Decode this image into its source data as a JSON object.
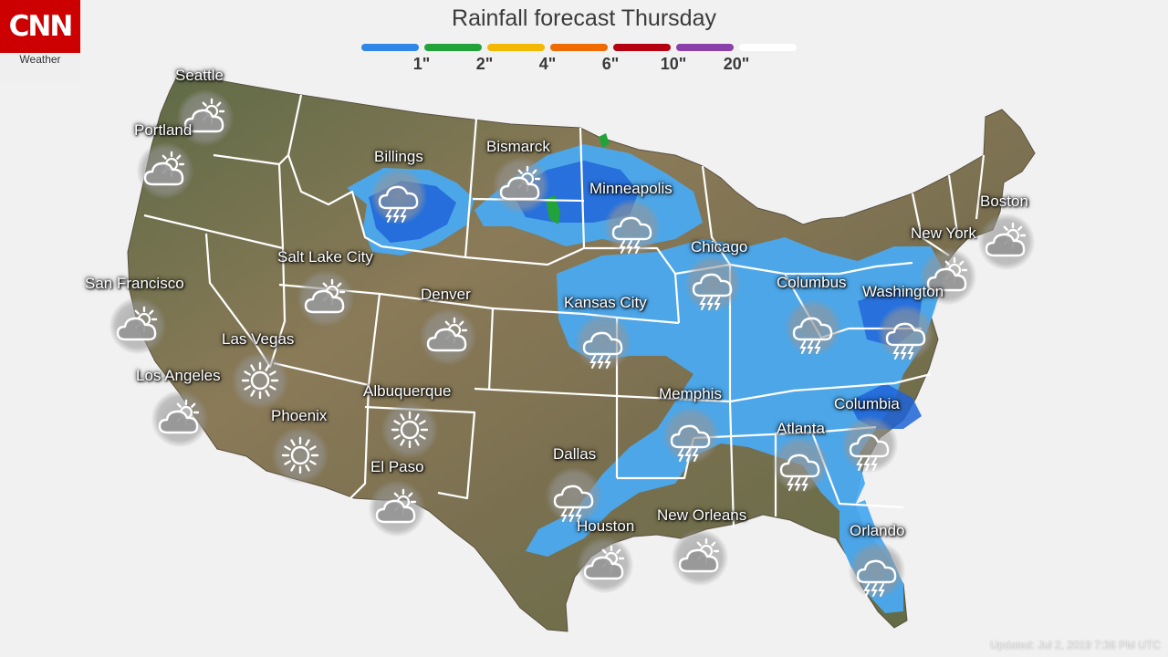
{
  "brand": {
    "logo_text": "CNN",
    "sub_label": "Weather",
    "color": "#cc0000"
  },
  "title": "Rainfall forecast Thursday",
  "legend": {
    "segments": [
      {
        "color": "#2f86e6",
        "tick": "1\""
      },
      {
        "color": "#22a33a",
        "tick": "2\""
      },
      {
        "color": "#f5b800",
        "tick": "4\""
      },
      {
        "color": "#ef6a00",
        "tick": "6\""
      },
      {
        "color": "#b40010",
        "tick": "10\""
      },
      {
        "color": "#8b3fa8",
        "tick": "20\""
      },
      {
        "color": "#ffffff",
        "tick": ""
      }
    ]
  },
  "cities": [
    {
      "name": "Seattle",
      "icon": "partly-cloudy-icon"
    },
    {
      "name": "Portland",
      "icon": "partly-cloudy-icon"
    },
    {
      "name": "Billings",
      "icon": "thunderstorm-icon"
    },
    {
      "name": "Bismarck",
      "icon": "partly-cloudy-icon"
    },
    {
      "name": "Minneapolis",
      "icon": "thunderstorm-icon"
    },
    {
      "name": "Boston",
      "icon": "partly-cloudy-icon"
    },
    {
      "name": "New York",
      "icon": "partly-cloudy-icon"
    },
    {
      "name": "Chicago",
      "icon": "thunderstorm-icon"
    },
    {
      "name": "Salt Lake City",
      "icon": "partly-cloudy-icon"
    },
    {
      "name": "San Francisco",
      "icon": "partly-cloudy-icon"
    },
    {
      "name": "Denver",
      "icon": "partly-cloudy-icon"
    },
    {
      "name": "Kansas City",
      "icon": "thunderstorm-icon"
    },
    {
      "name": "Columbus",
      "icon": "thunderstorm-icon"
    },
    {
      "name": "Washington",
      "icon": "thunderstorm-icon"
    },
    {
      "name": "Las Vegas",
      "icon": "sunny-icon"
    },
    {
      "name": "Los Angeles",
      "icon": "partly-cloudy-icon"
    },
    {
      "name": "Phoenix",
      "icon": "sunny-icon"
    },
    {
      "name": "Albuquerque",
      "icon": "sunny-icon"
    },
    {
      "name": "Memphis",
      "icon": "thunderstorm-icon"
    },
    {
      "name": "Columbia",
      "icon": "thunderstorm-icon"
    },
    {
      "name": "Atlanta",
      "icon": "thunderstorm-icon"
    },
    {
      "name": "El Paso",
      "icon": "partly-cloudy-icon"
    },
    {
      "name": "Dallas",
      "icon": "thunderstorm-icon"
    },
    {
      "name": "Houston",
      "icon": "partly-cloudy-icon"
    },
    {
      "name": "New Orleans",
      "icon": "partly-cloudy-icon"
    },
    {
      "name": "Orlando",
      "icon": "thunderstorm-icon"
    }
  ],
  "updated": "Updated:   Jul 2, 2019   7:36 PM UTC",
  "colors": {
    "land": "#7d7052",
    "rain_light": "#4aa9f0",
    "rain_heavy": "#1f64d8",
    "rain_2in": "#22a33a"
  }
}
